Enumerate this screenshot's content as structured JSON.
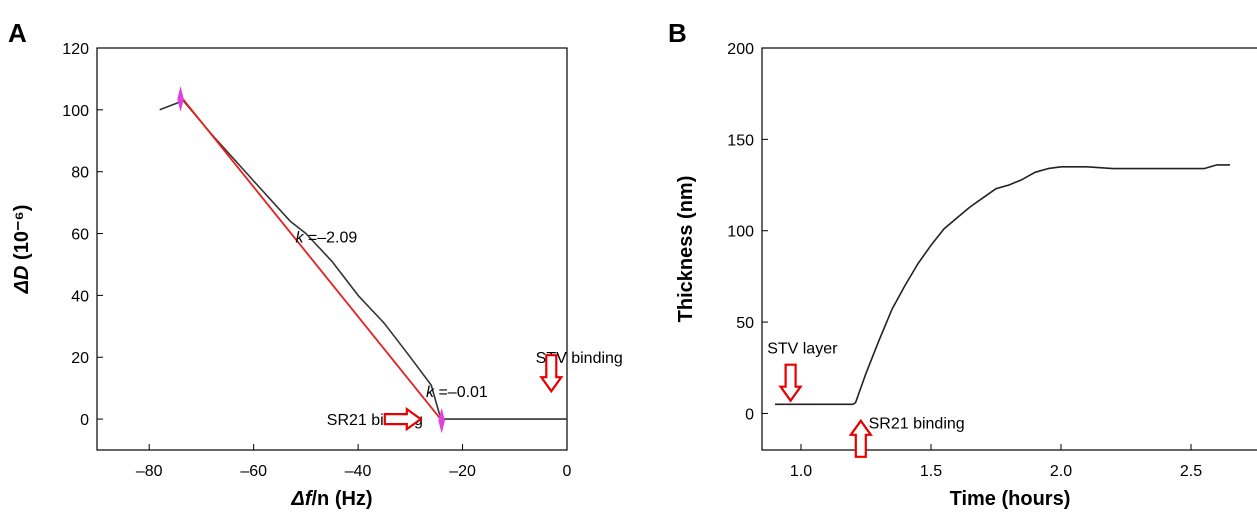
{
  "chart_data": [
    {
      "type": "line",
      "panel_label": "A",
      "xlabel_symbol": "Δf",
      "xlabel_rest": "/n (Hz)",
      "ylabel_symbol": "ΔD",
      "ylabel_rest": " (10⁻⁶)",
      "xlim": [
        -90,
        0
      ],
      "ylim": [
        -10,
        120
      ],
      "xticks": [
        -80,
        -60,
        -40,
        -20,
        0
      ],
      "xtick_labels": [
        "–80",
        "–60",
        "–40",
        "–20",
        "0"
      ],
      "yticks": [
        0,
        20,
        40,
        60,
        80,
        100,
        120
      ],
      "ytick_labels": [
        "0",
        "20",
        "40",
        "60",
        "80",
        "100",
        "120"
      ],
      "series": [
        {
          "color": "#333333",
          "x": [
            -78,
            -75,
            -73.5,
            -72,
            -68,
            -60,
            -53,
            -50,
            -45,
            -40,
            -35,
            -30,
            -26,
            -24.5,
            -24,
            -22,
            -18,
            -10,
            0
          ],
          "y": [
            100,
            102,
            103,
            100,
            92,
            77,
            64,
            60,
            51,
            40,
            31,
            20,
            11,
            2,
            0,
            0,
            0,
            0,
            0
          ]
        },
        {
          "color": "#e62020",
          "x": [
            -73.8,
            -24.2
          ],
          "y": [
            104,
            0
          ]
        }
      ],
      "markers": [
        {
          "x": -74,
          "y": 103.5,
          "color": "#e040e0"
        },
        {
          "x": -24,
          "y": -0.5,
          "color": "#e040e0"
        }
      ],
      "annotations": [
        {
          "text_italic": "k",
          "text": " =–2.09",
          "x": -52,
          "y": 59
        },
        {
          "text_italic": "k",
          "text": " =–0.01",
          "x": -27,
          "y": 9
        },
        {
          "text": "SR21 binding",
          "x": -46,
          "y": 0
        },
        {
          "text": "STV binding",
          "x": -6,
          "y": 20
        }
      ],
      "arrows": [
        {
          "direction": "right",
          "x": -28,
          "y": 0,
          "color": "#e60000"
        },
        {
          "direction": "down",
          "x": -3,
          "y": 9,
          "color": "#e60000"
        }
      ]
    },
    {
      "type": "line",
      "panel_label": "B",
      "xlabel": "Time (hours)",
      "ylabel": "Thickness (nm)",
      "xlim": [
        0.85,
        2.85
      ],
      "ylim": [
        -20,
        200
      ],
      "xticks": [
        1.0,
        1.5,
        2.0,
        2.5
      ],
      "xtick_labels": [
        "1.0",
        "1.5",
        "2.0",
        "2.5"
      ],
      "yticks": [
        0,
        50,
        100,
        150,
        200
      ],
      "ytick_labels": [
        "0",
        "50",
        "100",
        "150",
        "200"
      ],
      "series": [
        {
          "color": "#222222",
          "x": [
            0.9,
            1.0,
            1.1,
            1.2,
            1.21,
            1.23,
            1.25,
            1.3,
            1.35,
            1.4,
            1.45,
            1.5,
            1.55,
            1.6,
            1.65,
            1.7,
            1.75,
            1.8,
            1.85,
            1.9,
            1.95,
            2.0,
            2.1,
            2.2,
            2.3,
            2.4,
            2.5,
            2.55,
            2.6,
            2.65
          ],
          "y": [
            5,
            5,
            5,
            5,
            6,
            14,
            22,
            40,
            57,
            70,
            82,
            92,
            101,
            107,
            113,
            118,
            123,
            125,
            128,
            132,
            134,
            135,
            135,
            134,
            134,
            134,
            134,
            134,
            136,
            136
          ]
        }
      ],
      "annotations": [
        {
          "text": "STV layer",
          "x": 0.87,
          "y": 36
        },
        {
          "text": "SR21 binding",
          "x": 1.26,
          "y": -5
        }
      ],
      "arrows": [
        {
          "direction": "down",
          "x": 0.96,
          "y": 7,
          "color": "#e60000"
        },
        {
          "direction": "up",
          "x": 1.23,
          "y": -4,
          "color": "#e60000"
        }
      ]
    }
  ]
}
